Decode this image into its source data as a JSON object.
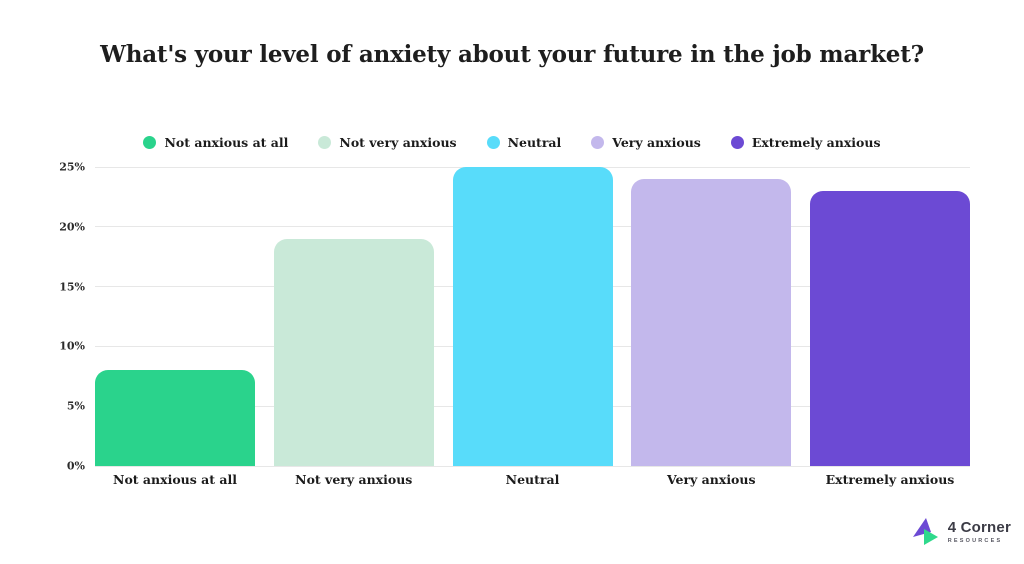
{
  "chart_data": {
    "type": "bar",
    "title": "What's your level of anxiety about your future in the job market?",
    "categories": [
      "Not anxious at all",
      "Not very anxious",
      "Neutral",
      "Very anxious",
      "Extremely anxious"
    ],
    "values": [
      8,
      19,
      25,
      24,
      23
    ],
    "unit": "%",
    "colors": [
      "#2ad38c",
      "#c9e9d8",
      "#58dcfa",
      "#c3b8ec",
      "#6c4ad4"
    ],
    "legend_entries": [
      "Not anxious at all",
      "Not very anxious",
      "Neutral",
      "Very anxious",
      "Extremely anxious"
    ],
    "legend_position": "top",
    "legend_marker": "circle",
    "y_ticks": [
      0,
      5,
      10,
      15,
      20,
      25
    ],
    "y_tick_labels": [
      "0%",
      "5%",
      "10%",
      "15%",
      "20%",
      "25%"
    ],
    "ylim": [
      0,
      25
    ],
    "xlabel": "",
    "ylabel": "",
    "grid": true
  },
  "branding": {
    "logo_name": "4 Corner",
    "logo_subtext": "RESOURCES",
    "logo_purple": "#6c4ad4",
    "logo_green": "#2fd98c"
  }
}
